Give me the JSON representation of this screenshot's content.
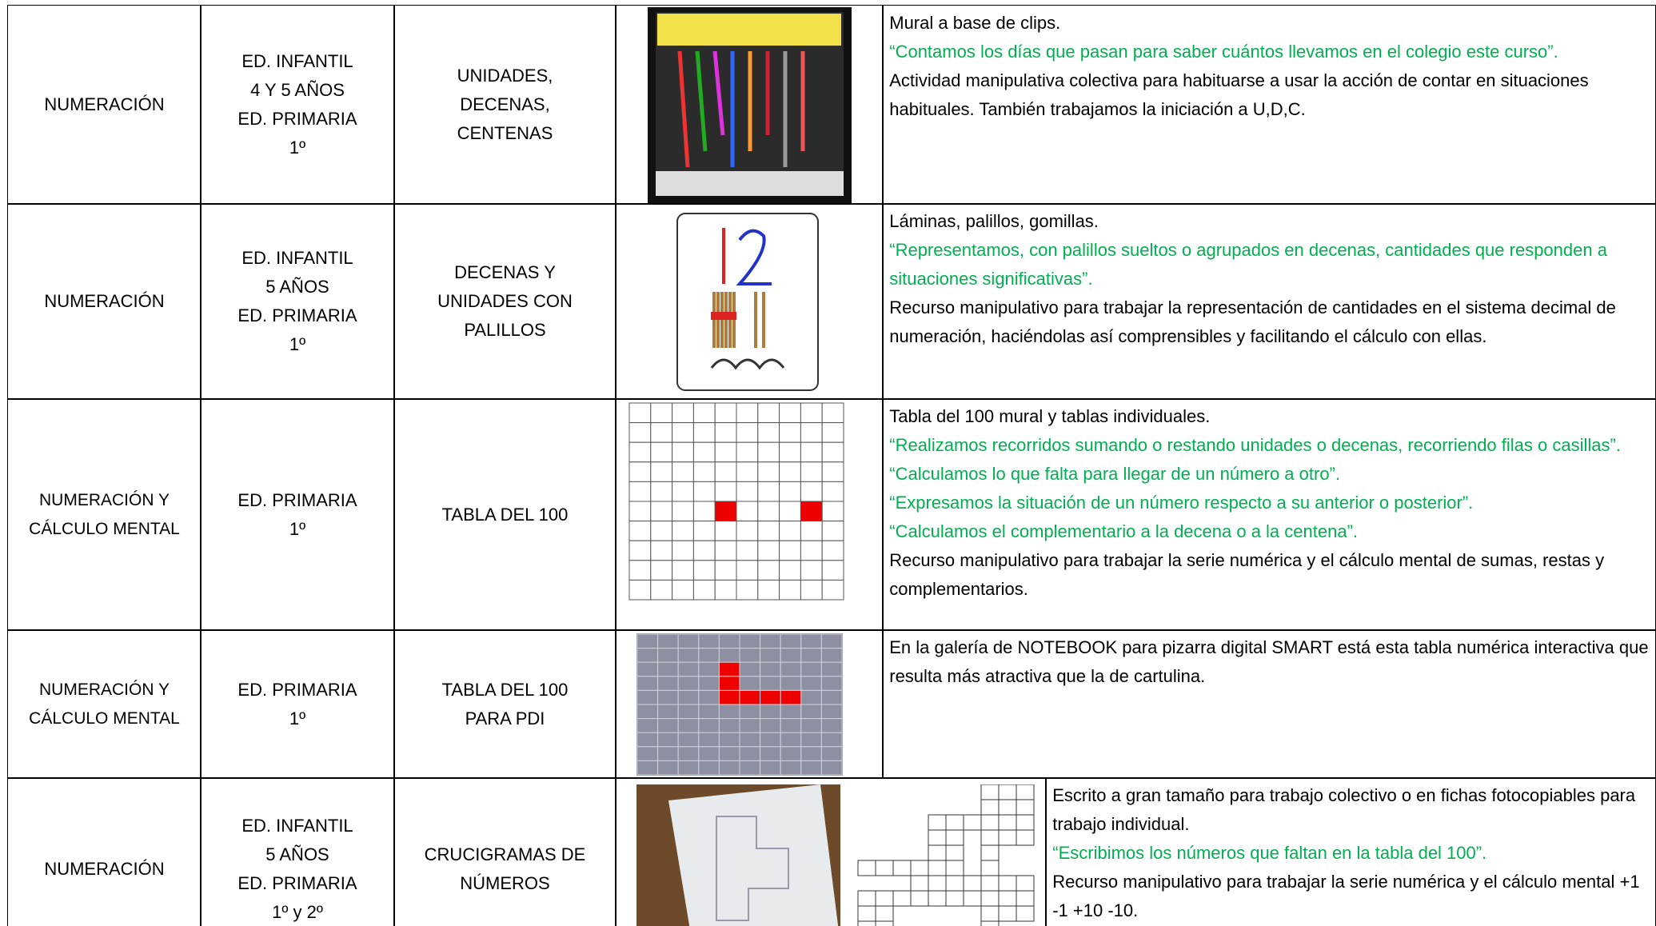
{
  "table": {
    "rows": [
      {
        "topic": [
          "NUMERACIÓN"
        ],
        "level": [
          "ED. INFANTIL",
          "4 Y 5 AÑOS",
          "ED. PRIMARIA",
          "1º"
        ],
        "content": [
          "UNIDADES,",
          "DECENAS,",
          "CENTENAS"
        ],
        "description": [
          {
            "text": "Mural a base de clips.",
            "color": "#000000"
          },
          {
            "text": "“Contamos los días que pasan para saber cuántos llevamos en el colegio este curso”.",
            "color": "#00b050"
          },
          {
            "text": "Actividad manipulativa colectiva para habituarse a usar la acción de contar en situaciones habituales. También trabajamos la iniciación a U,D,C.",
            "color": "#000000"
          }
        ]
      },
      {
        "topic": [
          "NUMERACIÓN"
        ],
        "level": [
          "ED. INFANTIL",
          "5 AÑOS",
          "ED. PRIMARIA",
          "1º"
        ],
        "content": [
          "DECENAS Y",
          "UNIDADES  CON",
          "PALILLOS"
        ],
        "description": [
          {
            "text": "Láminas, palillos, gomillas.",
            "color": "#000000"
          },
          {
            "text": "“Representamos, con palillos sueltos o agrupados en decenas,  cantidades que responden a situaciones significativas”.",
            "color": "#00b050"
          },
          {
            "text": "Recurso manipulativo para trabajar la representación de cantidades en el sistema decimal de numeración, haciéndolas así comprensibles y facilitando el cálculo con ellas.",
            "color": "#000000"
          }
        ]
      },
      {
        "topic": [
          "NUMERACIÓN Y",
          "CÁLCULO MENTAL"
        ],
        "level": [
          "ED. PRIMARIA",
          "1º"
        ],
        "content": [
          "TABLA DEL 100"
        ],
        "description": [
          {
            "text": "Tabla del 100 mural y tablas individuales.",
            "color": "#000000"
          },
          {
            "text": "“Realizamos recorridos sumando o restando unidades o decenas, recorriendo filas o casillas”.",
            "color": "#00b050"
          },
          {
            "text": "“Calculamos lo que falta para llegar de un número a otro”.",
            "color": "#00b050"
          },
          {
            "text": "“Expresamos la situación de un número respecto a su anterior o posterior”.",
            "color": "#00b050"
          },
          {
            "text": "“Calculamos el complementario a la decena o a la centena”.",
            "color": "#00b050"
          },
          {
            "text": "Recurso manipulativo para trabajar la serie numérica y el cálculo mental de sumas, restas y complementarios.",
            "color": "#000000"
          }
        ]
      },
      {
        "topic": [
          "NUMERACIÓN Y",
          "CÁLCULO MENTAL"
        ],
        "level": [
          "ED. PRIMARIA",
          "1º"
        ],
        "content": [
          "TABLA DEL 100",
          "PARA PDI"
        ],
        "description": [
          {
            "text": "En la galería de NOTEBOOK para pizarra digital SMART está esta tabla numérica interactiva que resulta más atractiva que la de cartulina.",
            "color": "#000000"
          }
        ]
      },
      {
        "topic": [
          "NUMERACIÓN"
        ],
        "level": [
          "ED. INFANTIL",
          "5 AÑOS",
          "ED. PRIMARIA",
          "1º y 2º"
        ],
        "content": [
          "CRUCIGRAMAS DE",
          "NÚMEROS"
        ],
        "description": [
          {
            "text": "Escrito a gran tamaño para trabajo colectivo o en fichas fotocopiables para trabajo individual.",
            "color": "#000000"
          },
          {
            "text": "“Escribimos los números que faltan en la tabla del 100”.",
            "color": "#00b050"
          },
          {
            "text": "Recurso manipulativo para trabajar la serie numérica y el cálculo mental   +1 -1  +10 -10.",
            "color": "#000000"
          }
        ]
      }
    ]
  }
}
